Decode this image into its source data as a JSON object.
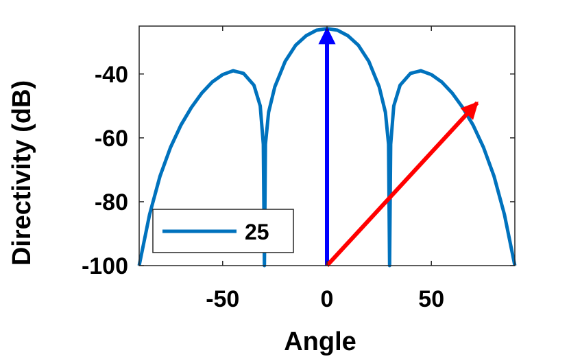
{
  "chart_data": {
    "type": "line",
    "xlabel": "Angle",
    "ylabel": "Directivity (dB)",
    "xlim": [
      -90,
      90
    ],
    "ylim": [
      -100,
      -25
    ],
    "xticks": [
      -50,
      0,
      50
    ],
    "yticks": [
      -40,
      -60,
      -80,
      -100
    ],
    "grid": false,
    "legend": {
      "placement": "bottom-left"
    },
    "series": [
      {
        "name": "25",
        "color": "#0072BD",
        "x": [
          -90,
          -85,
          -80,
          -75,
          -70,
          -65,
          -60,
          -55,
          -50,
          -45,
          -40,
          -35,
          -32,
          -30.5,
          -30,
          -29.5,
          -28,
          -25,
          -20,
          -15,
          -10,
          -5,
          0,
          5,
          10,
          15,
          20,
          25,
          28,
          29.5,
          30,
          30.5,
          32,
          35,
          40,
          45,
          50,
          55,
          60,
          65,
          70,
          75,
          80,
          85,
          90
        ],
        "y": [
          -100,
          -84,
          -72,
          -63,
          -56,
          -50.5,
          -46,
          -42.5,
          -40.2,
          -39,
          -39.8,
          -43.5,
          -50,
          -62,
          -100,
          -62,
          -52,
          -44,
          -36,
          -31,
          -28,
          -26.3,
          -25.8,
          -26.3,
          -28,
          -31,
          -36,
          -44,
          -52,
          -62,
          -100,
          -62,
          -50,
          -43.5,
          -39.8,
          -39,
          -40.2,
          -42.5,
          -46,
          -50.5,
          -56,
          -63,
          -72,
          -84,
          -100
        ]
      }
    ],
    "annotations": [
      {
        "type": "arrow",
        "color": "#0000FF",
        "from": [
          0,
          -100
        ],
        "to": [
          0,
          -25.8
        ]
      },
      {
        "type": "arrow",
        "color": "#FF0000",
        "from": [
          0,
          -100
        ],
        "to": [
          72,
          -49
        ]
      }
    ]
  }
}
